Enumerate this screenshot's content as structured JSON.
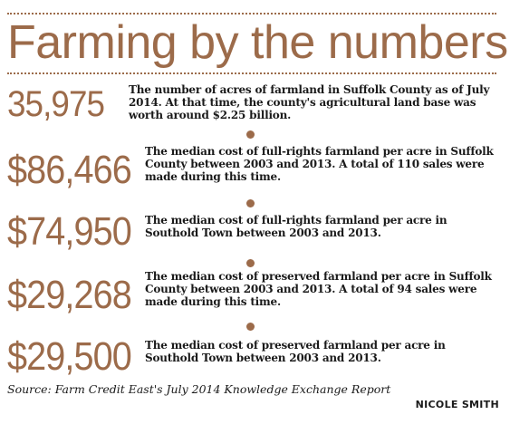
{
  "title": "Farming by the numbers",
  "colors": {
    "accent": "#9c6b4a",
    "text": "#1a1a1a",
    "background": "#ffffff"
  },
  "stats": [
    {
      "value": "35,975",
      "description": "The number of acres of farmland in Suffolk County as of July 2014. At that time, the county's agricultural land base was worth around $2.25 billion."
    },
    {
      "value": "$86,466",
      "description": "The median cost of full-rights farmland per acre in Suffolk County between 2003 and 2013. A total of 110 sales were made during this time."
    },
    {
      "value": "$74,950",
      "description": "The median cost of full-rights farmland per acre in Southold Town between 2003 and 2013."
    },
    {
      "value": "$29,268",
      "description": "The median cost of preserved farmland per acre in Suffolk County between 2003 and 2013. A total of 94 sales were made during this time."
    },
    {
      "value": "$29,500",
      "description": "The median cost of preserved farmland per acre in Southold Town between 2003 and 2013."
    }
  ],
  "source": "Source: Farm Credit East's July 2014 Knowledge Exchange Report",
  "credit": "NICOLE SMITH"
}
